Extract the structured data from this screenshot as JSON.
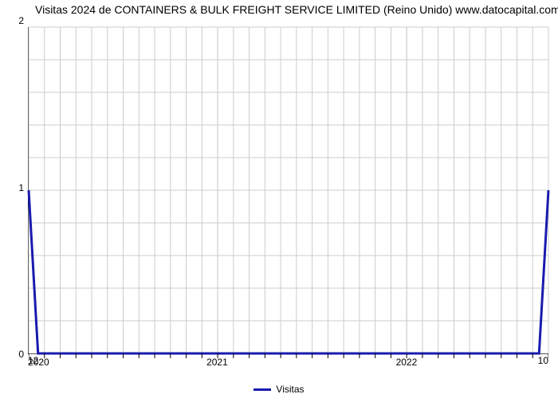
{
  "chart": {
    "type": "line",
    "title": "Visitas 2024 de CONTAINERS & BULK FREIGHT SERVICE LIMITED (Reino Unido) www.datocapital.com",
    "title_fontsize": 14,
    "title_color": "#000000",
    "background_color": "#ffffff",
    "grid_color": "#cccccc",
    "axis_color": "#000000",
    "yaxis": {
      "min": 0,
      "max": 2,
      "ticks": [
        0,
        1,
        2
      ],
      "tick_labels": [
        "0",
        "1",
        "2"
      ],
      "minor_ticks": [
        0.2,
        0.4,
        0.6,
        0.8,
        1.2,
        1.4,
        1.6,
        1.8
      ],
      "label_fontsize": 12
    },
    "xaxis": {
      "year_labels": [
        "2020",
        "2021",
        "2022"
      ],
      "year_positions": [
        0.0,
        0.3636,
        0.7273
      ],
      "end_labels": {
        "left": "12",
        "right": "10"
      },
      "minor_tick_count": 33,
      "label_fontsize": 12
    },
    "series": {
      "name": "Visitas",
      "color": "#1a1aae",
      "line_width": 3,
      "points_x": [
        0.0,
        0.018,
        0.982,
        1.0
      ],
      "points_y": [
        1.0,
        0.0,
        0.0,
        1.0
      ]
    },
    "legend": {
      "label": "Visitas",
      "fontsize": 12,
      "swatch_color": "#1a1aae"
    }
  }
}
